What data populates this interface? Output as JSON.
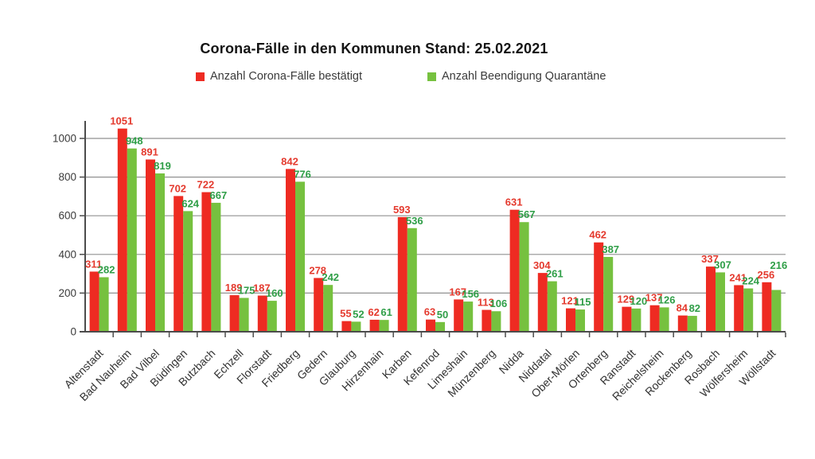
{
  "chart_data": {
    "type": "bar",
    "title": "Corona-Fälle in den Kommunen Stand: 25.02.2021",
    "categories": [
      "Altenstadt",
      "Bad Nauheim",
      "Bad Vilbel",
      "Büdingen",
      "Butzbach",
      "Echzell",
      "Florstadt",
      "Friedberg",
      "Gedern",
      "Glauburg",
      "Hirzenhain",
      "Karben",
      "Kefenrod",
      "Limeshain",
      "Münzenberg",
      "Nidda",
      "Niddatal",
      "Ober-Mörlen",
      "Ortenberg",
      "Ranstadt",
      "Reichelsheim",
      "Rockenberg",
      "Rosbach",
      "Wölfersheim",
      "Wöllstadt"
    ],
    "series": [
      {
        "name": "Anzahl Corona-Fälle bestätigt",
        "color": "#ee2b22",
        "label_color": "#e43a2e",
        "values": [
          311,
          1051,
          891,
          702,
          722,
          189,
          187,
          842,
          278,
          55,
          62,
          593,
          63,
          167,
          113,
          631,
          304,
          121,
          462,
          129,
          137,
          84,
          337,
          241,
          256
        ]
      },
      {
        "name": "Anzahl Beendigung Quarantäne",
        "color": "#76c13f",
        "label_color": "#2f9e47",
        "values": [
          282,
          948,
          819,
          624,
          667,
          175,
          160,
          776,
          242,
          52,
          61,
          536,
          50,
          156,
          106,
          567,
          261,
          115,
          387,
          120,
          126,
          82,
          307,
          224,
          216
        ]
      }
    ],
    "xlabel": "",
    "ylabel": "",
    "ylim": [
      0,
      1000
    ],
    "yticks": [
      0,
      200,
      400,
      600,
      800,
      1000
    ],
    "grid": true,
    "legend_position": "top",
    "value_labels": true,
    "label_overrides": {
      "green_above_red": [
        "Wöllstadt"
      ]
    },
    "style": {
      "axis_color": "#4c4c4c",
      "grid_color": "#919191",
      "y_tick_label_color": "#3b3b3b",
      "x_tick_label_color": "#333333",
      "title_color": "#141414",
      "legend_text_color": "#3a3a3a",
      "background": "#ffffff"
    }
  }
}
